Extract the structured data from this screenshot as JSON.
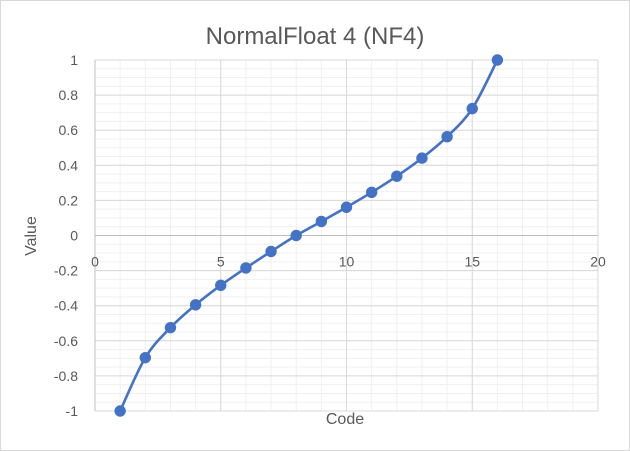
{
  "chart_data": {
    "type": "scatter",
    "title": "NormalFloat 4 (NF4)",
    "xlabel": "Code",
    "ylabel": "Value",
    "xlim": [
      0,
      20
    ],
    "ylim": [
      -1,
      1
    ],
    "x_ticks": [
      "0",
      "5",
      "10",
      "15",
      "20"
    ],
    "y_ticks": [
      "1",
      "0.8",
      "0.6",
      "0.4",
      "0.2",
      "0",
      "-0.2",
      "-0.4",
      "-0.6",
      "-0.8",
      "-1"
    ],
    "grid": true,
    "minor_grid": true,
    "series": [
      {
        "x": [
          1,
          2,
          3,
          4,
          5,
          6,
          7,
          8,
          9,
          10,
          11,
          12,
          13,
          14,
          15,
          16
        ],
        "y": [
          -1.0,
          -0.696,
          -0.525,
          -0.395,
          -0.284,
          -0.185,
          -0.091,
          0.0,
          0.08,
          0.161,
          0.246,
          0.338,
          0.441,
          0.563,
          0.723,
          1.0
        ],
        "color": "#4472c4"
      }
    ]
  }
}
